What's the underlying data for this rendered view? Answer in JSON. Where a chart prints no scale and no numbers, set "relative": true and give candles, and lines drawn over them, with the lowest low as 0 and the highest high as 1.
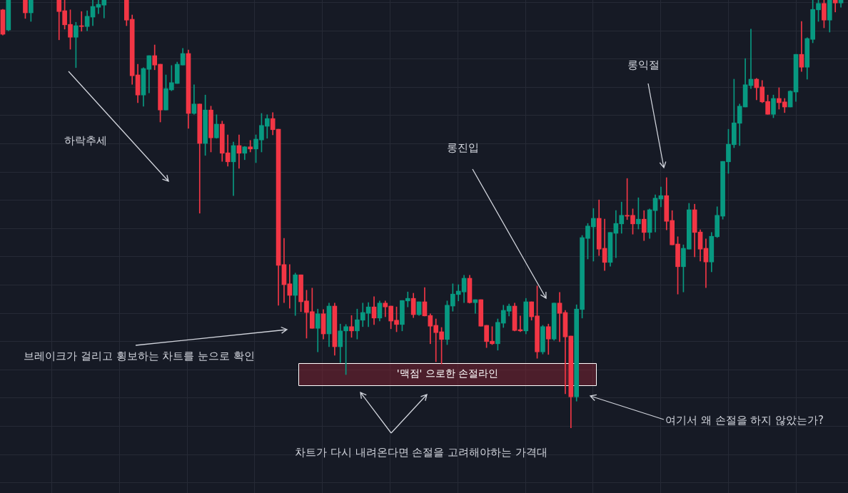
{
  "chart_data": {
    "type": "candlestick",
    "relative": true,
    "grid": true,
    "categories": [
      null,
      null,
      null,
      null,
      null,
      null,
      null,
      null,
      null,
      null,
      null,
      null,
      null,
      null,
      null,
      null,
      null,
      null,
      null,
      null,
      null,
      null,
      null,
      null,
      null,
      null,
      null,
      null,
      null,
      null,
      null,
      null,
      null,
      null,
      null,
      null,
      null,
      null,
      null,
      null,
      null,
      null,
      null,
      null,
      null,
      null,
      null,
      null,
      null,
      null,
      null,
      null,
      null,
      null,
      null,
      null,
      null,
      null,
      null,
      null,
      null,
      null,
      null,
      null,
      null,
      null,
      null,
      null,
      null,
      null,
      null,
      null,
      null,
      null,
      null,
      null,
      null,
      null,
      null,
      null,
      null,
      null,
      null,
      null,
      null,
      null,
      null,
      null,
      null,
      null,
      null,
      null,
      null,
      null,
      null,
      null,
      null,
      null,
      null,
      null,
      null,
      null,
      null,
      null,
      null,
      null,
      null,
      null,
      null,
      null,
      null,
      null,
      null,
      null,
      null,
      null,
      null,
      null,
      null,
      null,
      null,
      null,
      null,
      null,
      null,
      null,
      null,
      null,
      null,
      null,
      null,
      null,
      null,
      null,
      null,
      null,
      null,
      null,
      null,
      null,
      null,
      null,
      null,
      null,
      null,
      null,
      null,
      null,
      null,
      null
    ],
    "ohlc": [
      [
        0.977,
        0.978,
        0.918,
        0.92
      ],
      [
        0.93,
        1,
        0.928,
        1
      ],
      null,
      null,
      [
        1,
        1,
        0.957,
        0.97
      ],
      [
        0.97,
        1,
        0.95,
        1
      ],
      null,
      null,
      null,
      null,
      [
        1,
        1,
        0.907,
        0.973
      ],
      [
        0.975,
        1,
        0.932,
        0.942
      ],
      [
        0.943,
        0.977,
        0.885,
        0.913
      ],
      [
        0.913,
        0.948,
        0.842,
        0.94
      ],
      [
        0.94,
        0.973,
        0.927,
        0.938
      ],
      [
        0.938,
        0.975,
        0.928,
        0.962
      ],
      [
        0.96,
        1,
        0.94,
        0.985
      ],
      [
        0.983,
        1,
        0.968,
        0.99
      ],
      [
        0.988,
        1,
        0.958,
        1
      ],
      null,
      null,
      null,
      [
        1,
        1,
        0.94,
        0.953
      ],
      [
        0.955,
        0.965,
        0.803,
        0.823
      ],
      [
        0.825,
        0.85,
        0.76,
        0.778
      ],
      [
        0.778,
        0.842,
        0.752,
        0.84
      ],
      [
        0.838,
        0.87,
        0.783,
        0.87
      ],
      [
        0.87,
        0.895,
        0.837,
        0.848
      ],
      [
        0.85,
        0.85,
        0.715,
        0.743
      ],
      [
        0.743,
        0.825,
        0.743,
        0.793
      ],
      [
        0.79,
        0.847,
        0.788,
        0.807
      ],
      [
        0.805,
        0.855,
        0.805,
        0.85
      ],
      [
        0.848,
        0.887,
        0.848,
        0.875
      ],
      [
        0.875,
        0.883,
        0.7,
        0.735
      ],
      [
        0.735,
        0.802,
        0.733,
        0.757
      ],
      [
        0.757,
        0.757,
        0.502,
        0.665
      ],
      [
        0.665,
        0.778,
        0.637,
        0.743
      ],
      [
        0.743,
        0.752,
        0.645,
        0.678
      ],
      [
        0.678,
        0.732,
        0.677,
        0.71
      ],
      [
        0.71,
        0.717,
        0.623,
        0.642
      ],
      [
        0.643,
        0.685,
        0.612,
        0.622
      ],
      [
        0.622,
        0.668,
        0.543,
        0.66
      ],
      [
        0.66,
        0.685,
        0.607,
        0.642
      ],
      [
        0.642,
        0.658,
        0.627,
        0.657
      ],
      [
        0.657,
        0.672,
        0.645,
        0.652
      ],
      [
        0.652,
        0.685,
        0.62,
        0.675
      ],
      [
        0.673,
        0.735,
        0.645,
        0.707
      ],
      [
        0.705,
        0.732,
        0.677,
        0.723
      ],
      [
        0.723,
        0.737,
        0.685,
        0.697
      ],
      [
        0.698,
        0.698,
        0.287,
        0.38
      ],
      [
        0.382,
        0.443,
        0.293,
        0.335
      ],
      [
        0.337,
        0.382,
        0.28,
        0.31
      ],
      [
        0.31,
        0.362,
        0.263,
        0.358
      ],
      [
        0.358,
        0.358,
        0.272,
        0.295
      ],
      [
        0.297,
        0.322,
        0.21,
        0.27
      ],
      [
        0.272,
        0.327,
        0.233,
        0.233
      ],
      [
        0.233,
        0.278,
        0.178,
        0.267
      ],
      [
        0.267,
        0.277,
        0.208,
        0.22
      ],
      [
        0.22,
        0.292,
        0.19,
        0.285
      ],
      [
        0.285,
        0.292,
        0.17,
        0.19
      ],
      [
        0.19,
        0.243,
        0.153,
        0.227
      ],
      [
        0.227,
        0.242,
        0.125,
        0.237
      ],
      [
        0.237,
        0.263,
        0.212,
        0.227
      ],
      [
        0.227,
        0.278,
        0.208,
        0.253
      ],
      [
        0.252,
        0.292,
        0.237,
        0.27
      ],
      [
        0.268,
        0.293,
        0.237,
        0.283
      ],
      [
        0.283,
        0.307,
        0.242,
        0.257
      ],
      [
        0.257,
        0.297,
        0.25,
        0.292
      ],
      [
        0.292,
        0.297,
        0.26,
        0.283
      ],
      [
        0.285,
        0.285,
        0.232,
        0.25
      ],
      [
        0.252,
        0.283,
        0.225,
        0.242
      ],
      [
        0.242,
        0.298,
        0.227,
        0.298
      ],
      [
        0.297,
        0.318,
        0.283,
        0.303
      ],
      [
        0.303,
        0.315,
        0.258,
        0.265
      ],
      [
        0.265,
        0.295,
        0.263,
        0.295
      ],
      [
        0.295,
        0.328,
        0.262,
        0.262
      ],
      [
        0.263,
        0.267,
        0.197,
        0.238
      ],
      [
        0.24,
        0.255,
        0.155,
        0.223
      ],
      [
        0.225,
        0.235,
        0.15,
        0.207
      ],
      [
        0.207,
        0.297,
        0.195,
        0.287
      ],
      [
        0.285,
        0.337,
        0.273,
        0.313
      ],
      [
        0.312,
        0.335,
        0.297,
        0.32
      ],
      [
        0.318,
        0.357,
        0.293,
        0.35
      ],
      [
        0.35,
        0.357,
        0.292,
        0.293
      ],
      [
        0.293,
        0.3,
        0.268,
        0.3
      ],
      [
        0.3,
        0.3,
        0.238,
        0.238
      ],
      [
        0.24,
        0.24,
        0.188,
        0.202
      ],
      [
        0.203,
        0.237,
        0.195,
        0.197
      ],
      [
        0.197,
        0.255,
        0.182,
        0.247
      ],
      [
        0.245,
        0.287,
        0.235,
        0.275
      ],
      [
        0.273,
        0.29,
        0.262,
        0.285
      ],
      [
        0.285,
        0.292,
        0.227,
        0.228
      ],
      [
        0.23,
        0.262,
        0.225,
        0.227
      ],
      [
        0.227,
        0.303,
        0.22,
        0.295
      ],
      [
        0.295,
        0.295,
        0.252,
        0.26
      ],
      [
        0.262,
        0.332,
        0.163,
        0.178
      ],
      [
        0.178,
        0.24,
        0.173,
        0.237
      ],
      [
        0.237,
        0.243,
        0.172,
        0.208
      ],
      [
        0.208,
        0.292,
        0.205,
        0.292
      ],
      [
        0.292,
        0.317,
        0.202,
        0.268
      ],
      [
        0.27,
        0.275,
        0.08,
        0.213
      ],
      [
        0.215,
        0.215,
        0,
        0.073
      ],
      [
        0.073,
        0.288,
        0.063,
        0.278
      ],
      [
        0.277,
        0.45,
        0.257,
        0.445
      ],
      [
        0.443,
        0.478,
        0.395,
        0.472
      ],
      [
        0.47,
        0.513,
        0.39,
        0.49
      ],
      [
        0.49,
        0.533,
        0.403,
        0.418
      ],
      [
        0.42,
        0.488,
        0.368,
        0.387
      ],
      [
        0.387,
        0.457,
        0.378,
        0.457
      ],
      [
        0.455,
        0.508,
        0.398,
        0.478
      ],
      [
        0.477,
        0.528,
        0.455,
        0.497
      ],
      [
        0.497,
        0.583,
        0.487,
        0.495
      ],
      [
        0.497,
        0.512,
        0.453,
        0.477
      ],
      [
        0.477,
        0.538,
        0.465,
        0.488
      ],
      [
        0.488,
        0.508,
        0.438,
        0.457
      ],
      [
        0.457,
        0.512,
        0.443,
        0.51
      ],
      [
        0.508,
        0.545,
        0.458,
        0.537
      ],
      [
        0.535,
        0.563,
        0.517,
        0.543
      ],
      [
        0.543,
        0.585,
        0.463,
        0.483
      ],
      [
        0.485,
        0.508,
        0.428,
        0.428
      ],
      [
        0.43,
        0.447,
        0.313,
        0.377
      ],
      [
        0.377,
        0.428,
        0.318,
        0.42
      ],
      [
        0.418,
        0.525,
        0.418,
        0.51
      ],
      [
        0.51,
        0.523,
        0.4,
        0.457
      ],
      [
        0.458,
        0.463,
        0.39,
        0.418
      ],
      [
        0.42,
        0.442,
        0.328,
        0.388
      ],
      [
        0.388,
        0.457,
        0.365,
        0.448
      ],
      [
        0.447,
        0.517,
        0.445,
        0.497
      ],
      [
        0.495,
        0.623,
        0.488,
        0.623
      ],
      [
        0.622,
        0.698,
        0.595,
        0.663
      ],
      [
        0.662,
        0.815,
        0.655,
        0.713
      ],
      [
        0.712,
        0.757,
        0.66,
        0.752
      ],
      [
        0.75,
        0.863,
        0.75,
        0.802
      ],
      [
        0.8,
        0.932,
        0.793,
        0.815
      ],
      [
        0.815,
        0.817,
        0.767,
        0.795
      ],
      [
        0.797,
        0.812,
        0.76,
        0.762
      ],
      [
        0.763,
        0.778,
        0.733,
        0.733
      ],
      [
        0.733,
        0.778,
        0.725,
        0.77
      ],
      [
        0.77,
        0.795,
        0.745,
        0.76
      ],
      [
        0.762,
        0.77,
        0.737,
        0.75
      ],
      [
        0.75,
        0.788,
        0.75,
        0.787
      ],
      [
        0.785,
        0.873,
        0.763,
        0.873
      ],
      [
        0.873,
        0.95,
        0.833,
        0.843
      ],
      [
        0.843,
        0.912,
        0.815,
        0.91
      ],
      [
        0.908,
        1,
        0.9,
        0.978
      ],
      [
        0.977,
        1,
        0.95,
        0.992
      ],
      [
        0.992,
        1,
        0.935,
        0.953
      ],
      [
        0.953,
        1,
        0.925,
        1
      ],
      [
        1,
        1,
        0.972,
        0.993
      ],
      [
        0.993,
        1,
        0.983,
        1
      ]
    ],
    "bands": [
      {
        "axis": "y",
        "from": 0.1,
        "to": 0.152,
        "label": "'맥점' 으로한 손절라인",
        "color": "#7a2232"
      }
    ],
    "annotations": [
      "하락추세",
      "롱진입",
      "롱익절",
      "브레이크가 걸리고 횡보하는 차트를 눈으로 확인",
      "차트가 다시 내려온다면 손절을 고려해야하는 가격대",
      "여기서 왜 손절을 하지 않았는가?"
    ]
  }
}
